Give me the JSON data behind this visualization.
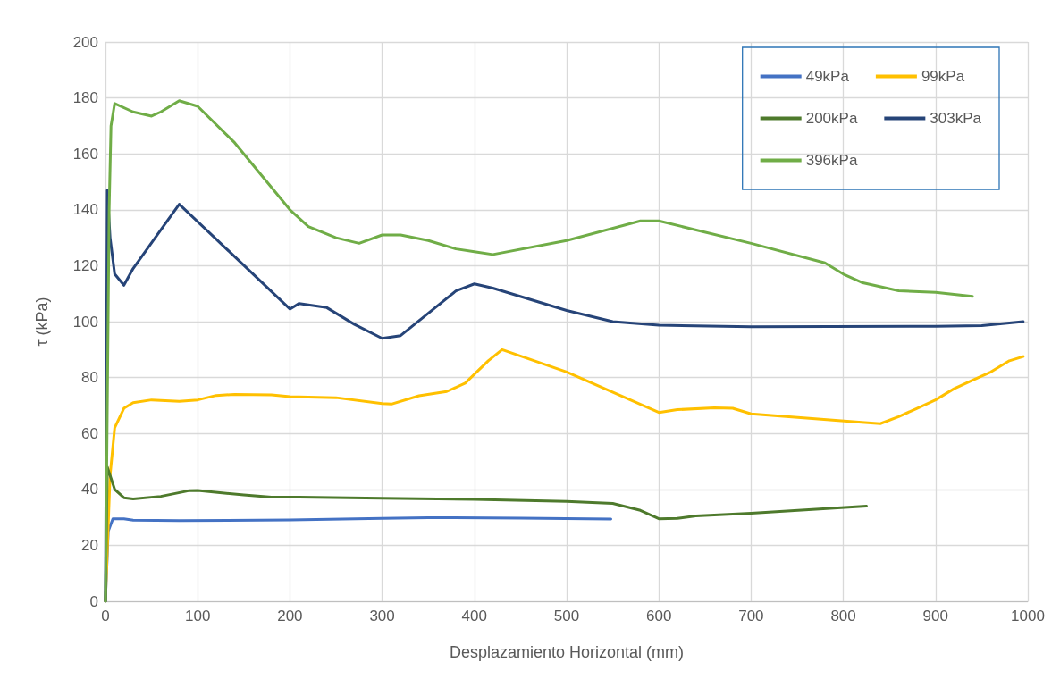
{
  "chart_data": {
    "type": "line",
    "xlabel": "Desplazamiento Horizontal (mm)",
    "ylabel": "τ (kPa)",
    "xlim": [
      0,
      1000
    ],
    "xticks": [
      0,
      100,
      200,
      300,
      400,
      500,
      600,
      700,
      800,
      900,
      1000
    ],
    "ylim": [
      0,
      200
    ],
    "yticks": [
      0,
      20,
      40,
      60,
      80,
      100,
      120,
      140,
      160,
      180,
      200
    ],
    "grid": true,
    "legend": "top right",
    "marker": "none",
    "line_style": "solid",
    "series": [
      {
        "name": "49kPa",
        "color": "#4472c4",
        "x": [
          0,
          3,
          8,
          20,
          30,
          80,
          200,
          300,
          350,
          450,
          548
        ],
        "values": [
          0,
          25,
          29.5,
          29.5,
          29,
          28.8,
          29.1,
          29.6,
          29.9,
          29.7,
          29.4
        ]
      },
      {
        "name": "99kPa",
        "color": "#ffc000",
        "x": [
          0,
          5,
          10,
          20,
          30,
          50,
          60,
          80,
          100,
          120,
          140,
          180,
          200,
          250,
          300,
          310,
          340,
          370,
          390,
          415,
          430,
          500,
          600,
          620,
          660,
          680,
          700,
          820,
          840,
          860,
          880,
          900,
          920,
          940,
          960,
          980,
          995
        ],
        "values": [
          0,
          45,
          62,
          69,
          71,
          72,
          71.8,
          71.5,
          72,
          73.6,
          74,
          73.8,
          73.2,
          72.8,
          70.7,
          70.5,
          73.5,
          75,
          78,
          86,
          90,
          82,
          67.5,
          68.5,
          69.2,
          69,
          67,
          64,
          63.5,
          66,
          69,
          72,
          76,
          79,
          82,
          86,
          87.5
        ]
      },
      {
        "name": "200kPa",
        "color": "#4e7a2c",
        "x": [
          0,
          2,
          10,
          20,
          30,
          60,
          90,
          100,
          150,
          180,
          210,
          300,
          400,
          500,
          550,
          580,
          600,
          620,
          640,
          700,
          825
        ],
        "values": [
          0,
          48,
          40,
          37,
          36.6,
          37.5,
          39.5,
          39.6,
          38,
          37.2,
          37.2,
          36.8,
          36.4,
          35.7,
          35,
          32.5,
          29.5,
          29.6,
          30.5,
          31.5,
          34
        ]
      },
      {
        "name": "303kPa",
        "color": "#264478",
        "x": [
          0,
          2,
          5,
          10,
          20,
          30,
          80,
          200,
          210,
          240,
          270,
          300,
          320,
          350,
          380,
          400,
          420,
          440,
          480,
          500,
          550,
          600,
          700,
          900,
          950,
          995
        ],
        "values": [
          0,
          147,
          130,
          117,
          113,
          119,
          142,
          104.5,
          106.5,
          105,
          99,
          94,
          95,
          103,
          111,
          113.5,
          112,
          110,
          106,
          104,
          100,
          98.7,
          98.2,
          98.3,
          98.6,
          100
        ]
      },
      {
        "name": "396kPa",
        "color": "#70ad47",
        "x": [
          0,
          4,
          6,
          10,
          30,
          50,
          60,
          80,
          100,
          140,
          180,
          200,
          220,
          250,
          275,
          300,
          320,
          350,
          380,
          400,
          420,
          500,
          580,
          600,
          700,
          780,
          800,
          820,
          860,
          900,
          940
        ],
        "values": [
          0,
          140,
          170,
          178,
          175,
          173.5,
          175,
          179,
          177,
          164,
          148,
          140,
          134,
          130,
          128,
          131,
          131,
          129,
          126,
          125,
          124,
          129,
          136,
          136,
          128,
          121,
          117,
          114,
          111,
          110.5,
          109
        ]
      }
    ]
  }
}
